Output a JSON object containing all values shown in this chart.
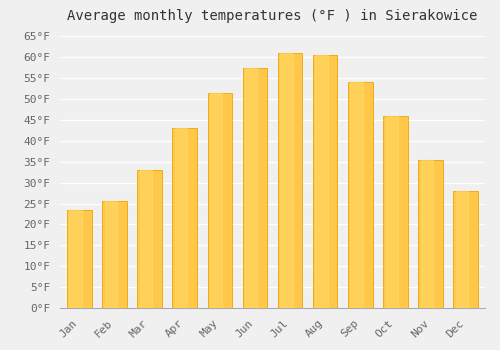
{
  "title": "Average monthly temperatures (°F ) in Sierakowice",
  "months": [
    "Jan",
    "Feb",
    "Mar",
    "Apr",
    "May",
    "Jun",
    "Jul",
    "Aug",
    "Sep",
    "Oct",
    "Nov",
    "Dec"
  ],
  "values": [
    23.5,
    25.5,
    33.0,
    43.0,
    51.5,
    57.5,
    61.0,
    60.5,
    54.0,
    46.0,
    35.5,
    28.0
  ],
  "bar_color_center": "#FFC84A",
  "bar_color_edge": "#F0A500",
  "ylim": [
    0,
    67
  ],
  "yticks": [
    0,
    5,
    10,
    15,
    20,
    25,
    30,
    35,
    40,
    45,
    50,
    55,
    60,
    65
  ],
  "ytick_labels": [
    "0°F",
    "5°F",
    "10°F",
    "15°F",
    "20°F",
    "25°F",
    "30°F",
    "35°F",
    "40°F",
    "45°F",
    "50°F",
    "55°F",
    "60°F",
    "65°F"
  ],
  "title_fontsize": 10,
  "tick_fontsize": 8,
  "background_color": "#f0f0f0",
  "grid_color": "#ffffff",
  "bar_width": 0.7
}
